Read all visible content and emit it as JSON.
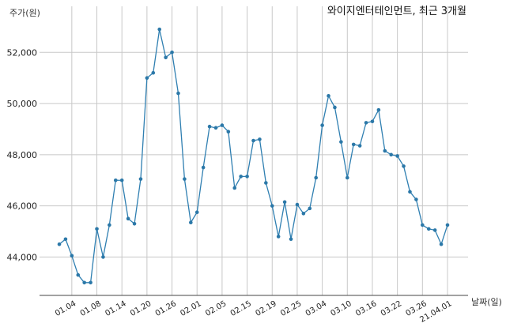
{
  "chart_data": {
    "type": "line",
    "title": "와이지엔터테인먼트, 최근 3개월",
    "ylabel": "주가(원)",
    "xlabel": "날짜(일)",
    "ylim": [
      42500,
      53800
    ],
    "y_ticks": [
      44000,
      46000,
      48000,
      50000,
      52000
    ],
    "y_tick_labels": [
      "44,000",
      "46,000",
      "48,000",
      "50,000",
      "52,000"
    ],
    "x_tick_labels": [
      "01.04",
      "01.08",
      "01.14",
      "01.20",
      "01.26",
      "02.01",
      "02.05",
      "02.15",
      "02.19",
      "02.25",
      "03.04",
      "03.10",
      "03.16",
      "03.22",
      "03.26",
      "21.04.01"
    ],
    "x_tick_index": [
      2,
      6,
      10,
      14,
      18,
      22,
      26,
      30,
      34,
      38,
      42,
      46,
      50,
      54,
      58,
      62
    ],
    "grid": true,
    "series": [
      {
        "values": [
          44500,
          44700,
          44050,
          43300,
          43000,
          43000,
          45100,
          44000,
          45250,
          47000,
          47000,
          45500,
          45300,
          47050,
          51000,
          51200,
          52900,
          51800,
          52000,
          50400,
          47050,
          45350,
          45750,
          47500,
          49100,
          49050,
          49150,
          48900,
          46700,
          47150,
          47150,
          48550,
          48600,
          46900,
          46000,
          44800,
          46150,
          44700,
          46050,
          45700,
          45900,
          47100,
          49150,
          50300,
          49850,
          48500,
          47100,
          48400,
          48350,
          49250,
          49300,
          49750,
          48150,
          48000,
          47950,
          47550,
          46550,
          46250,
          45250,
          45100,
          45050,
          44500,
          45250
        ]
      }
    ]
  }
}
